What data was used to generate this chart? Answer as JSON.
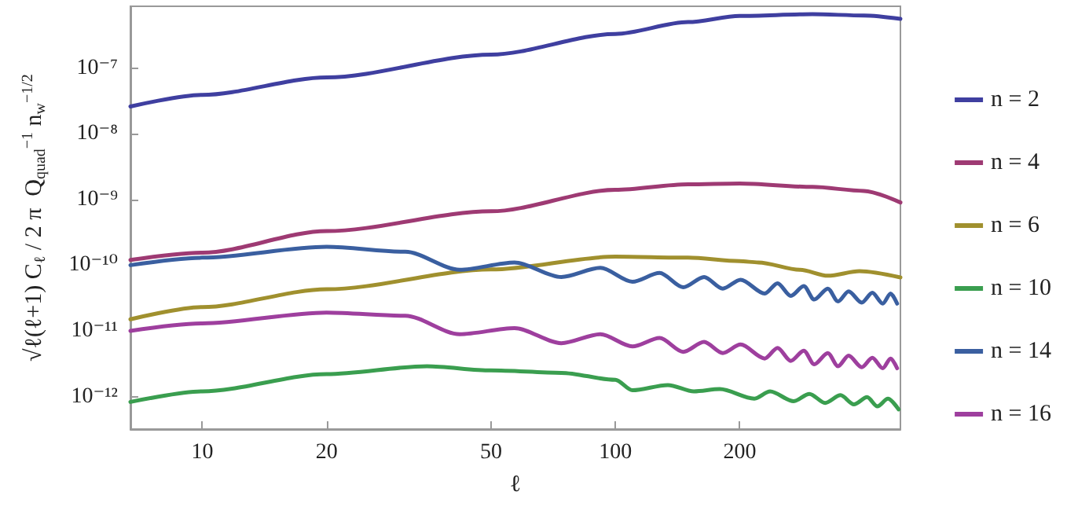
{
  "chart_data": {
    "type": "line",
    "xlabel": "ℓ",
    "ylabel": "√ℓ(ℓ+1) C$_{ℓ}$ / 2 π  Q$_{quad}$$^{−1}$ n$_{w}$$^{−1/2}$",
    "xlim": [
      6.7,
      490
    ],
    "xticks": [
      10,
      20,
      50,
      100,
      200
    ],
    "ylim": [
      3.2e-13,
      8.7e-07
    ],
    "yticks": [
      {
        "value": 1e-12,
        "label": "10⁻¹²"
      },
      {
        "value": 1e-11,
        "label": "10⁻¹¹"
      },
      {
        "value": 1e-10,
        "label": "10⁻¹⁰"
      },
      {
        "value": 1e-09,
        "label": "10⁻⁹"
      },
      {
        "value": 1e-08,
        "label": "10⁻⁸"
      },
      {
        "value": 1e-07,
        "label": "10⁻⁷"
      }
    ],
    "log": "xy",
    "grid": false,
    "legend": "right",
    "line_style": "solid",
    "series": [
      {
        "name": "n = 2",
        "color": "#3f3fa0",
        "x": [
          6.7,
          10,
          20,
          50,
          100,
          150,
          200,
          300,
          400,
          490
        ],
        "values": [
          2.6e-08,
          3.9e-08,
          7.2e-08,
          1.6e-07,
          3.3e-07,
          5e-07,
          6.2e-07,
          6.6e-07,
          6.3e-07,
          5.6e-07
        ]
      },
      {
        "name": "n = 4",
        "color": "#9e3a73",
        "x": [
          6.7,
          10,
          20,
          50,
          100,
          150,
          200,
          300,
          400,
          490
        ],
        "values": [
          1.2e-10,
          1.55e-10,
          3.3e-10,
          6.6e-10,
          1.4e-09,
          1.7e-09,
          1.75e-09,
          1.55e-09,
          1.35e-09,
          9e-10
        ]
      },
      {
        "name": "n = 6",
        "color": "#a0902e",
        "x": [
          6.7,
          10,
          20,
          50,
          100,
          150,
          200,
          222,
          280,
          327,
          390,
          490
        ],
        "values": [
          1.5e-11,
          2.3e-11,
          4.3e-11,
          8.6e-11,
          1.35e-10,
          1.3e-10,
          1.15e-10,
          1.1e-10,
          8.5e-11,
          6.9e-11,
          8.1e-11,
          6.5e-11
        ]
      },
      {
        "name": "n = 10",
        "color": "#3a9e4f",
        "x": [
          6.7,
          10,
          20,
          35,
          50,
          74,
          100,
          110,
          134,
          155,
          179,
          217,
          237,
          270,
          295,
          322,
          351,
          378,
          407,
          431,
          457,
          485
        ],
        "values": [
          8.3e-13,
          1.2e-12,
          2.2e-12,
          2.9e-12,
          2.5e-12,
          2.3e-12,
          1.8e-12,
          1.25e-12,
          1.5e-12,
          1.2e-12,
          1.3e-12,
          9.3e-13,
          1.2e-12,
          8.5e-13,
          1.1e-12,
          8e-13,
          1.05e-12,
          7.6e-13,
          9.8e-13,
          7.1e-13,
          9.3e-13,
          6.4e-13
        ]
      },
      {
        "name": "n = 14",
        "color": "#3a5fa0",
        "x": [
          6.7,
          10,
          20,
          31,
          42,
          57,
          74,
          92,
          110,
          128,
          146,
          164,
          182,
          201,
          230,
          247,
          266,
          286,
          303,
          327,
          346,
          367,
          395,
          419,
          444,
          464,
          481
        ],
        "values": [
          1e-10,
          1.3e-10,
          1.9e-10,
          1.6e-10,
          8.5e-11,
          1.1e-10,
          6.6e-11,
          9.1e-11,
          5.6e-11,
          7.6e-11,
          4.6e-11,
          6.6e-11,
          4.4e-11,
          6e-11,
          3.7e-11,
          5.3e-11,
          3.4e-11,
          4.8e-11,
          3e-11,
          4.4e-11,
          2.8e-11,
          4e-11,
          2.7e-11,
          3.8e-11,
          2.6e-11,
          3.7e-11,
          2.6e-11
        ]
      },
      {
        "name": "n = 16",
        "color": "#9e3f9e",
        "x": [
          6.7,
          10,
          20,
          31,
          42,
          57,
          74,
          92,
          110,
          128,
          146,
          164,
          182,
          201,
          230,
          247,
          266,
          286,
          303,
          327,
          346,
          367,
          395,
          419,
          444,
          464,
          481
        ],
        "values": [
          1e-11,
          1.3e-11,
          1.9e-11,
          1.7e-11,
          8.9e-12,
          1.1e-11,
          6.5e-12,
          8.9e-12,
          5.8e-12,
          7.8e-12,
          4.8e-12,
          6.8e-12,
          4.6e-12,
          6.2e-12,
          3.8e-12,
          5.5e-12,
          3.5e-12,
          5e-12,
          3.1e-12,
          4.6e-12,
          2.9e-12,
          4.2e-12,
          2.8e-12,
          3.9e-12,
          2.7e-12,
          3.8e-12,
          2.7e-12
        ]
      }
    ]
  }
}
